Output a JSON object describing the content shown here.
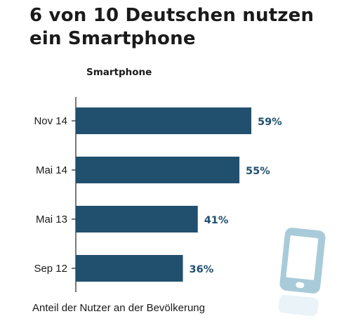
{
  "title_line1": "6 von 10 Deutschen nutzen",
  "title_line2": "ein Smartphone",
  "footnote": "Anteil der Nutzer an der Bevölkerung",
  "colors": {
    "bar": "#21506e",
    "value_label": "#1f4f6e",
    "axis": "#222222",
    "phone_icon": "#a9cbd9"
  },
  "icons": [
    "smartphone-icon"
  ],
  "chart_data": {
    "type": "bar",
    "orientation": "horizontal",
    "title": "6 von 10 Deutschen nutzen ein Smartphone",
    "series": [
      {
        "name": "Smartphone",
        "values": [
          59,
          55,
          41,
          36
        ]
      }
    ],
    "categories": [
      "Nov 14",
      "Mai 14",
      "Mai 13",
      "Sep 12"
    ],
    "value_labels": [
      "59%",
      "55%",
      "41%",
      "36%"
    ],
    "unit": "%",
    "xlabel": "",
    "ylabel": "",
    "xlim": [
      0,
      100
    ],
    "grid": false,
    "legend": "none"
  }
}
